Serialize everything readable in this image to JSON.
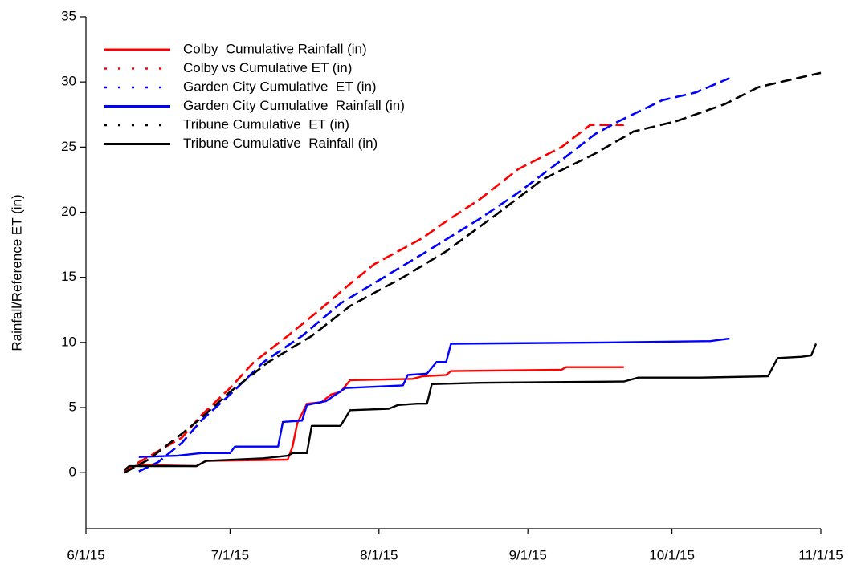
{
  "chart_data": {
    "type": "line",
    "y_label": "Rainfall/Reference ET (in)",
    "xlim": [
      "6/1/15",
      "11/1/15"
    ],
    "xticks": [
      "6/1/15",
      "7/1/15",
      "8/1/15",
      "9/1/15",
      "10/1/15",
      "11/1/15"
    ],
    "ylim": [
      -4.3,
      35
    ],
    "yticks": [
      0,
      5,
      10,
      15,
      20,
      25,
      30,
      35
    ],
    "legend": "upper left",
    "series": [
      {
        "name": "Colby  Cumulative Rainfall (in)",
        "color": "#ff0000",
        "dashed": false,
        "x": [
          "6/9/15",
          "6/12/15",
          "6/24/15",
          "6/26/15",
          "7/13/15",
          "7/14/15",
          "7/15/15",
          "7/17/15",
          "7/20/15",
          "7/22/15",
          "7/24/15",
          "7/26/15",
          "8/8/15",
          "8/10/15",
          "8/15/15",
          "8/16/15",
          "9/8/15",
          "9/9/15",
          "9/21/15"
        ],
        "values": [
          0.2,
          0.6,
          0.5,
          0.9,
          1.0,
          2.0,
          3.8,
          5.3,
          5.4,
          6.0,
          6.2,
          7.1,
          7.2,
          7.4,
          7.5,
          7.8,
          7.9,
          8.1,
          8.1
        ]
      },
      {
        "name": "Colby vs Cumulative ET (in)",
        "color": "#ff0000",
        "dashed": true,
        "x": [
          "6/9/15",
          "6/12/15",
          "6/21/15",
          "6/25/15",
          "7/1/15",
          "7/6/15",
          "7/13/15",
          "7/19/15",
          "7/26/15",
          "7/31/15",
          "8/10/15",
          "8/15/15",
          "8/22/15",
          "8/30/15",
          "9/8/15",
          "9/14/15",
          "9/21/15"
        ],
        "values": [
          0,
          0.8,
          2.7,
          4.4,
          6.5,
          8.5,
          10.5,
          12.3,
          14.5,
          16,
          18,
          19.3,
          21,
          23.3,
          25,
          26.7,
          26.7
        ]
      },
      {
        "name": "Garden City Cumulative  ET (in)",
        "color": "#0000ff",
        "dashed": true,
        "x": [
          "6/12/15",
          "6/16/15",
          "6/21/15",
          "6/25/15",
          "7/1/15",
          "7/8/15",
          "7/16/15",
          "7/24/15",
          "8/2/15",
          "8/11/15",
          "8/22/15",
          "8/30/15",
          "9/8/15",
          "9/15/15",
          "9/20/15",
          "9/29/15",
          "10/6/15",
          "10/13/15"
        ],
        "values": [
          0.1,
          0.8,
          2.3,
          4.0,
          6.0,
          8.5,
          10.5,
          13,
          15,
          17,
          19.5,
          21.5,
          24,
          26,
          27,
          28.6,
          29.2,
          30.3
        ]
      },
      {
        "name": "Garden City Cumulative  Rainfall (in)",
        "color": "#0000ff",
        "dashed": false,
        "x": [
          "6/12/15",
          "6/20/15",
          "6/25/15",
          "7/1/15",
          "7/2/15",
          "7/11/15",
          "7/12/15",
          "7/16/15",
          "7/17/15",
          "7/21/15",
          "7/25/15",
          "8/6/15",
          "8/7/15",
          "8/11/15",
          "8/13/15",
          "8/15/15",
          "8/16/15",
          "9/17/15",
          "10/9/15",
          "10/13/15"
        ],
        "values": [
          1.2,
          1.3,
          1.5,
          1.5,
          2.0,
          2.0,
          3.9,
          4.0,
          5.2,
          5.5,
          6.5,
          6.7,
          7.5,
          7.6,
          8.5,
          8.5,
          9.9,
          10.0,
          10.1,
          10.3
        ]
      },
      {
        "name": "Tribune Cumulative  ET (in)",
        "color": "#000000",
        "dashed": true,
        "x": [
          "6/9/15",
          "6/14/15",
          "6/21/15",
          "6/25/15",
          "7/1/15",
          "7/9/15",
          "7/18/15",
          "7/26/15",
          "8/6/15",
          "8/15/15",
          "8/25/15",
          "9/4/15",
          "9/15/15",
          "9/23/15",
          "10/2/15",
          "10/12/15",
          "10/19/15",
          "10/26/15",
          "11/1/15"
        ],
        "values": [
          0,
          1.0,
          3.0,
          4.2,
          6.2,
          8.5,
          10.5,
          12.8,
          15,
          17,
          19.7,
          22.5,
          24.5,
          26.2,
          27,
          28.3,
          29.6,
          30.2,
          30.7
        ]
      },
      {
        "name": "Tribune Cumulative  Rainfall (in)",
        "color": "#000000",
        "dashed": false,
        "x": [
          "6/9/15",
          "6/10/15",
          "6/24/15",
          "6/26/15",
          "7/8/15",
          "7/13/15",
          "7/14/15",
          "7/17/15",
          "7/18/15",
          "7/24/15",
          "7/26/15",
          "8/3/15",
          "8/5/15",
          "8/9/15",
          "8/11/15",
          "8/12/15",
          "8/22/15",
          "9/21/15",
          "9/24/15",
          "10/7/15",
          "10/21/15",
          "10/23/15",
          "10/28/15",
          "10/30/15",
          "10/31/15"
        ],
        "values": [
          0.2,
          0.5,
          0.5,
          0.9,
          1.1,
          1.3,
          1.5,
          1.5,
          3.6,
          3.6,
          4.8,
          4.9,
          5.2,
          5.3,
          5.3,
          6.8,
          6.9,
          7.0,
          7.3,
          7.3,
          7.4,
          8.8,
          8.9,
          9.0,
          9.9
        ]
      }
    ]
  }
}
